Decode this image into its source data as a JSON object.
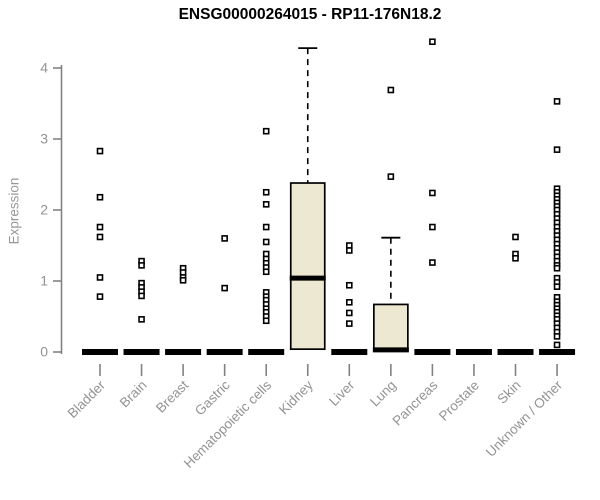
{
  "chart_data": {
    "type": "boxplot",
    "title": "ENSG00000264015 - RP11-176N18.2",
    "ylabel": "Expression",
    "xlabel": "",
    "ylim": [
      0,
      4
    ],
    "yticks": [
      0,
      1,
      2,
      3,
      4
    ],
    "grid": "off",
    "legend": "none",
    "colors": {
      "box_fill": "#EDE8D2",
      "box_border": "#000000",
      "point_border": "#000000",
      "point_fill": "#ffffff",
      "axis_line": "#828282",
      "tick_text": "#939393",
      "title_text": "#000000"
    },
    "categories": [
      "Bladder",
      "Brain",
      "Breast",
      "Gastric",
      "Hematopoietic cells",
      "Kidney",
      "Liver",
      "Lung",
      "Pancreas",
      "Prostate",
      "Skin",
      "Unknown / Other"
    ],
    "series": [
      {
        "name": "Bladder",
        "box": {
          "q1": 0,
          "median": 0,
          "q3": 0
        },
        "points": [
          2.83,
          2.18,
          1.76,
          1.62,
          1.05,
          0.78
        ]
      },
      {
        "name": "Brain",
        "box": {
          "q1": 0,
          "median": 0,
          "q3": 0
        },
        "points": [
          1.28,
          1.22,
          0.97,
          0.91,
          0.85,
          0.79,
          0.46
        ]
      },
      {
        "name": "Breast",
        "box": {
          "q1": 0,
          "median": 0,
          "q3": 0
        },
        "points": [
          1.18,
          1.12,
          1.05,
          1.01
        ]
      },
      {
        "name": "Gastric",
        "box": {
          "q1": 0,
          "median": 0,
          "q3": 0
        },
        "points": [
          1.6,
          0.9
        ]
      },
      {
        "name": "Hematopoietic cells",
        "box": {
          "q1": 0,
          "median": 0,
          "q3": 0
        },
        "points": [
          3.11,
          2.25,
          2.08,
          1.76,
          1.55,
          1.38,
          1.31,
          1.25,
          1.19,
          1.13,
          0.84,
          0.78,
          0.73,
          0.67,
          0.61,
          0.56,
          0.5,
          0.44
        ]
      },
      {
        "name": "Kidney",
        "box": {
          "q1": 0.04,
          "median": 1.04,
          "q3": 2.38,
          "whisker_high": 4.28
        },
        "points": []
      },
      {
        "name": "Liver",
        "box": {
          "q1": 0,
          "median": 0,
          "q3": 0
        },
        "points": [
          1.5,
          1.43,
          0.94,
          0.7,
          0.55,
          0.4
        ]
      },
      {
        "name": "Lung",
        "box": {
          "q1": 0.02,
          "median": 0.03,
          "q3": 0.67,
          "whisker_high": 1.61
        },
        "points": [
          3.69,
          2.47
        ]
      },
      {
        "name": "Pancreas",
        "box": {
          "q1": 0,
          "median": 0,
          "q3": 0
        },
        "points": [
          4.37,
          2.24,
          1.76,
          1.26
        ]
      },
      {
        "name": "Prostate",
        "box": {
          "q1": 0,
          "median": 0,
          "q3": 0
        },
        "points": []
      },
      {
        "name": "Skin",
        "box": {
          "q1": 0,
          "median": 0,
          "q3": 0
        },
        "points": [
          1.62,
          1.38,
          1.32
        ]
      },
      {
        "name": "Unknown / Other",
        "box": {
          "q1": 0,
          "median": 0,
          "q3": 0
        },
        "points": [
          3.53,
          2.85,
          2.3,
          2.25,
          2.2,
          2.15,
          2.1,
          2.05,
          2.0,
          1.94,
          1.88,
          1.82,
          1.76,
          1.7,
          1.64,
          1.58,
          1.52,
          1.46,
          1.4,
          1.34,
          1.28,
          1.22,
          1.18,
          1.04,
          0.98,
          0.92,
          0.77,
          0.71,
          0.66,
          0.61,
          0.56,
          0.51,
          0.46,
          0.4,
          0.34,
          0.28,
          0.22,
          0.1
        ]
      }
    ]
  }
}
